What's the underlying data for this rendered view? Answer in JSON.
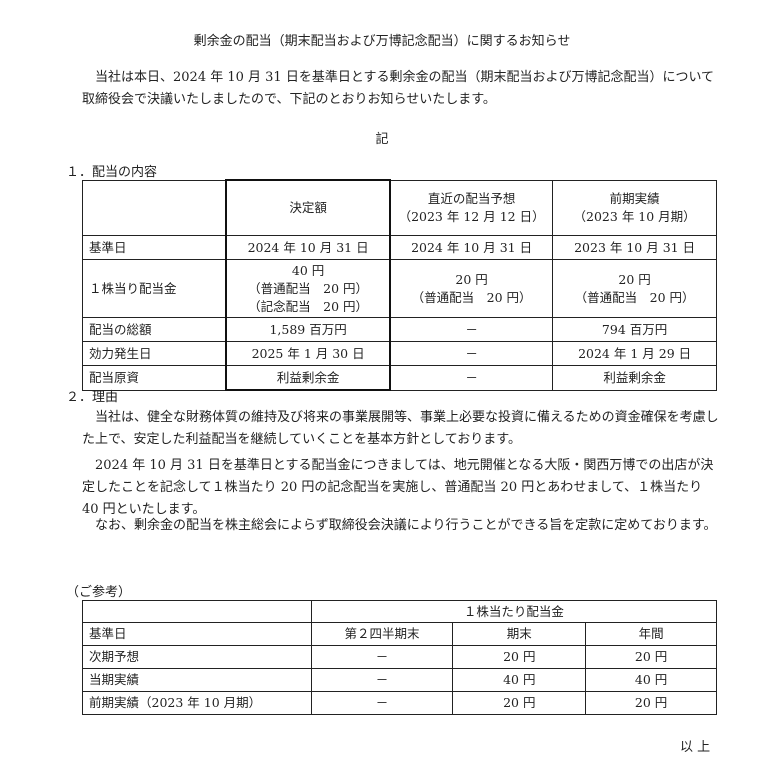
{
  "title": "剰余金の配当（期末配当および万博記念配当）に関するお知らせ",
  "intro": [
    "当社は本日、2024 年 10 月 31 日を基準日とする剰余金の配当（期末配当および万博記念配当）について取締役会で決議いたしましたので、下記のとおりお知らせいたします。"
  ],
  "ki": "記",
  "section1": {
    "heading": "１．配当の内容",
    "headers": [
      "",
      "決定額",
      "直近の配当予想\n（2023 年 12 月 12 日）",
      "前期実績\n（2023 年 10 月期）"
    ],
    "rows": [
      [
        "基準日",
        "2024 年 10 月 31 日",
        "2024 年 10 月 31 日",
        "2023 年 10 月 31 日"
      ],
      [
        "１株当り配当金",
        "40 円\n（普通配当　20 円）\n（記念配当　20 円）",
        "20 円\n（普通配当　20 円）",
        "20 円\n（普通配当　20 円）"
      ],
      [
        "配当の総額",
        "1,589 百万円",
        "－",
        "794 百万円"
      ],
      [
        "効力発生日",
        "2025 年 1 月 30 日",
        "－",
        "2024 年 1 月 29 日"
      ],
      [
        "配当原資",
        "利益剰余金",
        "－",
        "利益剰余金"
      ]
    ]
  },
  "section2": {
    "heading": "２．理由",
    "paragraphs": [
      "当社は、健全な財務体質の維持及び将来の事業展開等、事業上必要な投資に備えるための資金確保を考慮した上で、安定した利益配当を継続していくことを基本方針としております。",
      "2024 年 10 月 31 日を基準日とする配当金につきましては、地元開催となる大阪・関西万博での出店が決定したことを記念して１株当たり 20 円の記念配当を実施し、普通配当 20 円とあわせまして、１株当たり 40 円といたします。",
      "なお、剰余金の配当を株主総会によらず取締役会決議により行うことができる旨を定款に定めております。"
    ]
  },
  "reference": {
    "heading": "（ご参考）",
    "group_header": "１株当たり配当金",
    "headers": [
      "基準日",
      "第２四半期末",
      "期末",
      "年間"
    ],
    "rows": [
      [
        "次期予想",
        "－",
        "20 円",
        "20 円"
      ],
      [
        "当期実績",
        "－",
        "40 円",
        "40 円"
      ],
      [
        "前期実績（2023 年 10 月期）",
        "－",
        "20 円",
        "20 円"
      ]
    ]
  },
  "closing": "以 上"
}
